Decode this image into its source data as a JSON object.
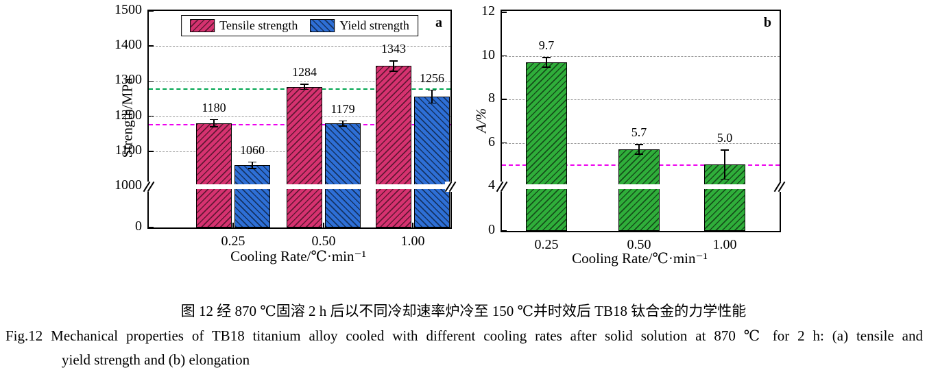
{
  "figure": {
    "caption_zh": "图 12  经 870 ℃固溶 2 h 后以不同冷却速率炉冷至 150 ℃并时效后 TB18 钛合金的力学性能",
    "caption_en_line1": "Fig.12    Mechanical properties of TB18 titanium alloy cooled with different cooling rates after solid solution at 870 ℃ for 2 h: (a) tensile and",
    "caption_en_line2": "yield strength and (b) elongation"
  },
  "chart_data": [
    {
      "type": "bar",
      "panel_label": "a",
      "xlabel": "Cooling Rate/℃·min⁻¹",
      "ylabel": "Strength/MPa",
      "categories": [
        "0.25",
        "0.50",
        "1.00"
      ],
      "series": [
        {
          "name": "Tensile strength",
          "color": "#d63270",
          "values": [
            1180,
            1284,
            1343
          ],
          "labels": [
            "1180",
            "1284",
            "1343"
          ],
          "errors": [
            12,
            9,
            16
          ]
        },
        {
          "name": "Yield strength",
          "color": "#2e6fd6",
          "values": [
            1060,
            1179,
            1256
          ],
          "labels": [
            "1060",
            "1179",
            "1256"
          ],
          "errors": [
            11,
            9,
            20
          ]
        }
      ],
      "y_axis": {
        "ticks": [
          1500,
          1400,
          1300,
          1200,
          1100,
          1000,
          0
        ],
        "max": 1500,
        "break_below": 1000,
        "has_break": true
      },
      "gridlines": [
        1100,
        1200,
        1300,
        1400
      ],
      "reference_lines": [
        {
          "value": 1280,
          "color": "#00a550"
        },
        {
          "value": 1178,
          "color": "#ee00ee"
        }
      ],
      "legend_position": "top"
    },
    {
      "type": "bar",
      "panel_label": "b",
      "xlabel": "Cooling Rate/℃·min⁻¹",
      "ylabel": "A/%",
      "categories": [
        "0.25",
        "0.50",
        "1.00"
      ],
      "series": [
        {
          "name": "Elongation",
          "color": "#2fae3a",
          "values": [
            9.7,
            5.7,
            5.0
          ],
          "labels": [
            "9.7",
            "5.7",
            "5.0"
          ],
          "errors": [
            0.25,
            0.25,
            0.7
          ]
        }
      ],
      "y_axis": {
        "ticks": [
          12,
          10,
          8,
          6,
          4,
          0
        ],
        "max": 12,
        "break_below": 4,
        "has_break": true
      },
      "gridlines": [
        6,
        8,
        10
      ],
      "reference_lines": [
        {
          "value": 5,
          "color": "#ee00ee"
        }
      ]
    }
  ]
}
